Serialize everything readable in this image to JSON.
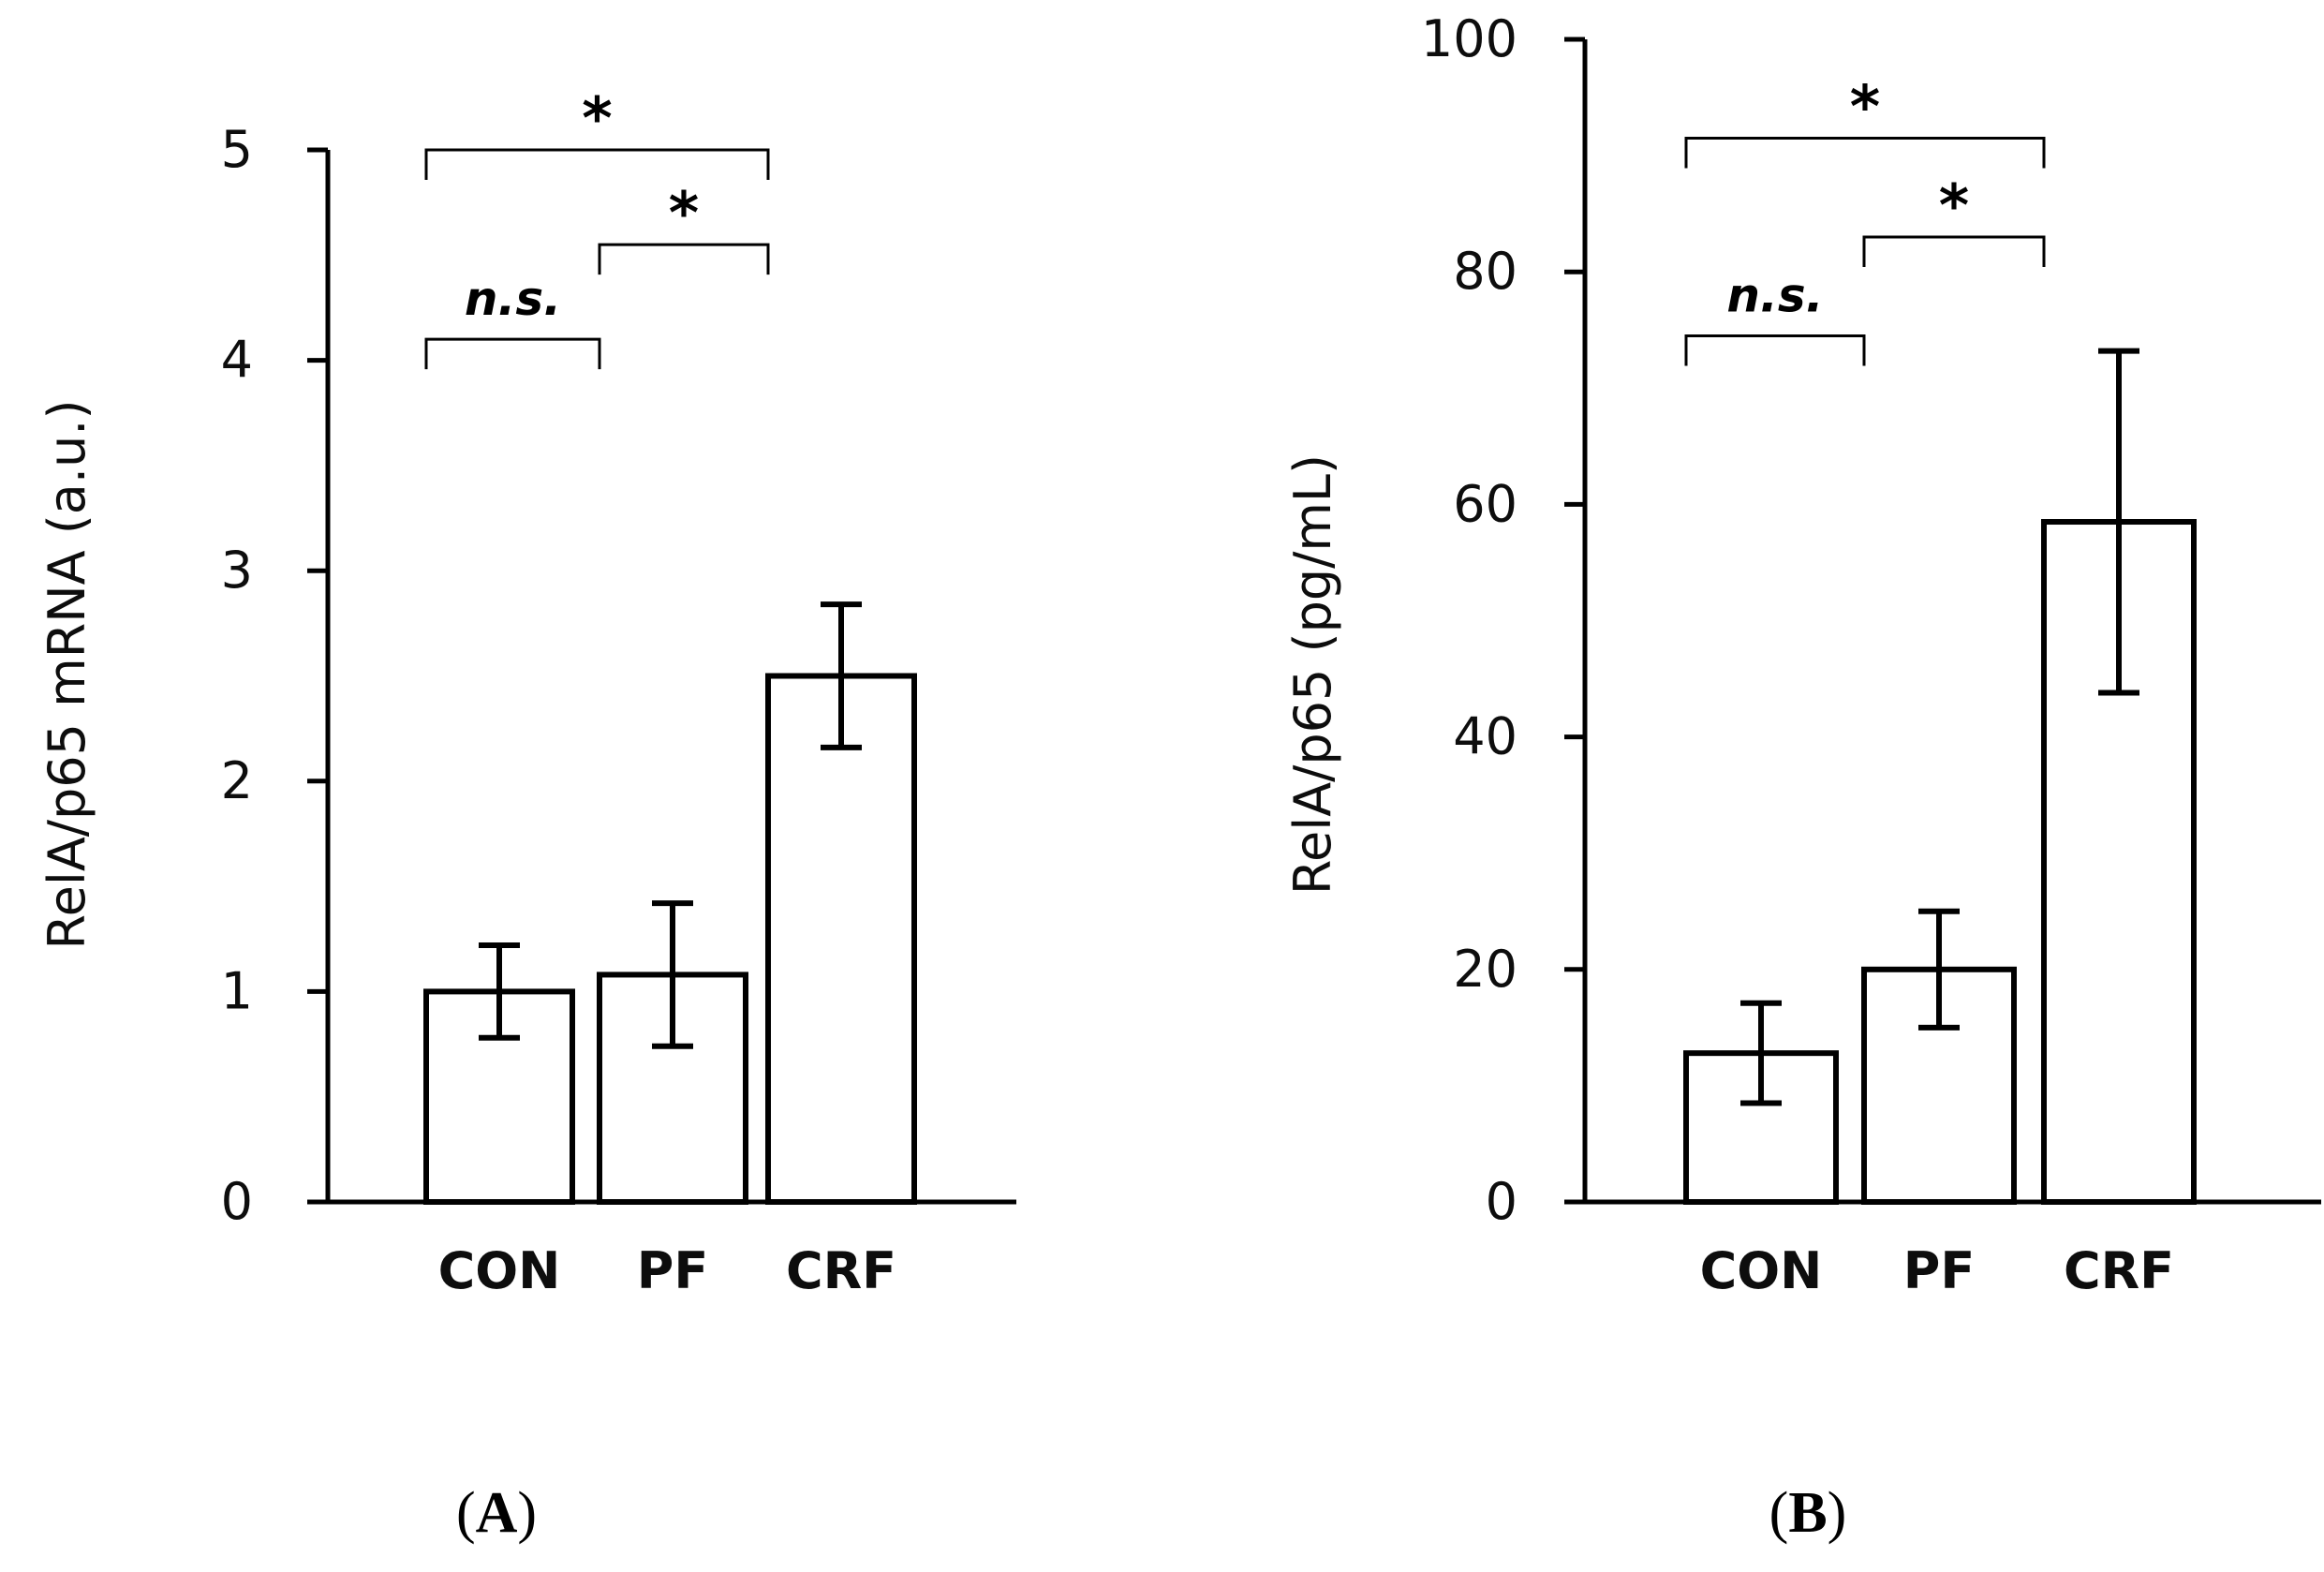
{
  "chart_data": [
    {
      "type": "bar",
      "panel_label": "A",
      "title": "",
      "xlabel": "",
      "ylabel": "RelA/p65 mRNA (a.u.)",
      "categories": [
        "CON",
        "PF",
        "CRF"
      ],
      "values": [
        1.0,
        1.08,
        2.5
      ],
      "error": [
        0.22,
        0.34,
        0.34
      ],
      "ylim": [
        0,
        5
      ],
      "yticks": [
        0,
        1,
        2,
        3,
        4,
        5
      ],
      "grid": false,
      "significance": [
        {
          "from": 0,
          "to": 1,
          "label": "n.s.",
          "level": 4.1
        },
        {
          "from": 1,
          "to": 2,
          "label": "*",
          "level": 4.55
        },
        {
          "from": 0,
          "to": 2,
          "label": "*",
          "level": 5.0
        }
      ]
    },
    {
      "type": "bar",
      "panel_label": "B",
      "title": "",
      "xlabel": "",
      "ylabel": "RelA/p65 (pg/mL)",
      "categories": [
        "CON",
        "PF",
        "CRF"
      ],
      "values": [
        12.8,
        20.0,
        58.5
      ],
      "error": [
        4.3,
        5.0,
        14.7
      ],
      "ylim": [
        0,
        100
      ],
      "yticks": [
        0,
        20,
        40,
        60,
        80,
        100
      ],
      "grid": false,
      "significance": [
        {
          "from": 0,
          "to": 1,
          "label": "n.s.",
          "level": 74.5
        },
        {
          "from": 1,
          "to": 2,
          "label": "*",
          "level": 83.0
        },
        {
          "from": 0,
          "to": 2,
          "label": "*",
          "level": 91.5
        }
      ]
    }
  ]
}
